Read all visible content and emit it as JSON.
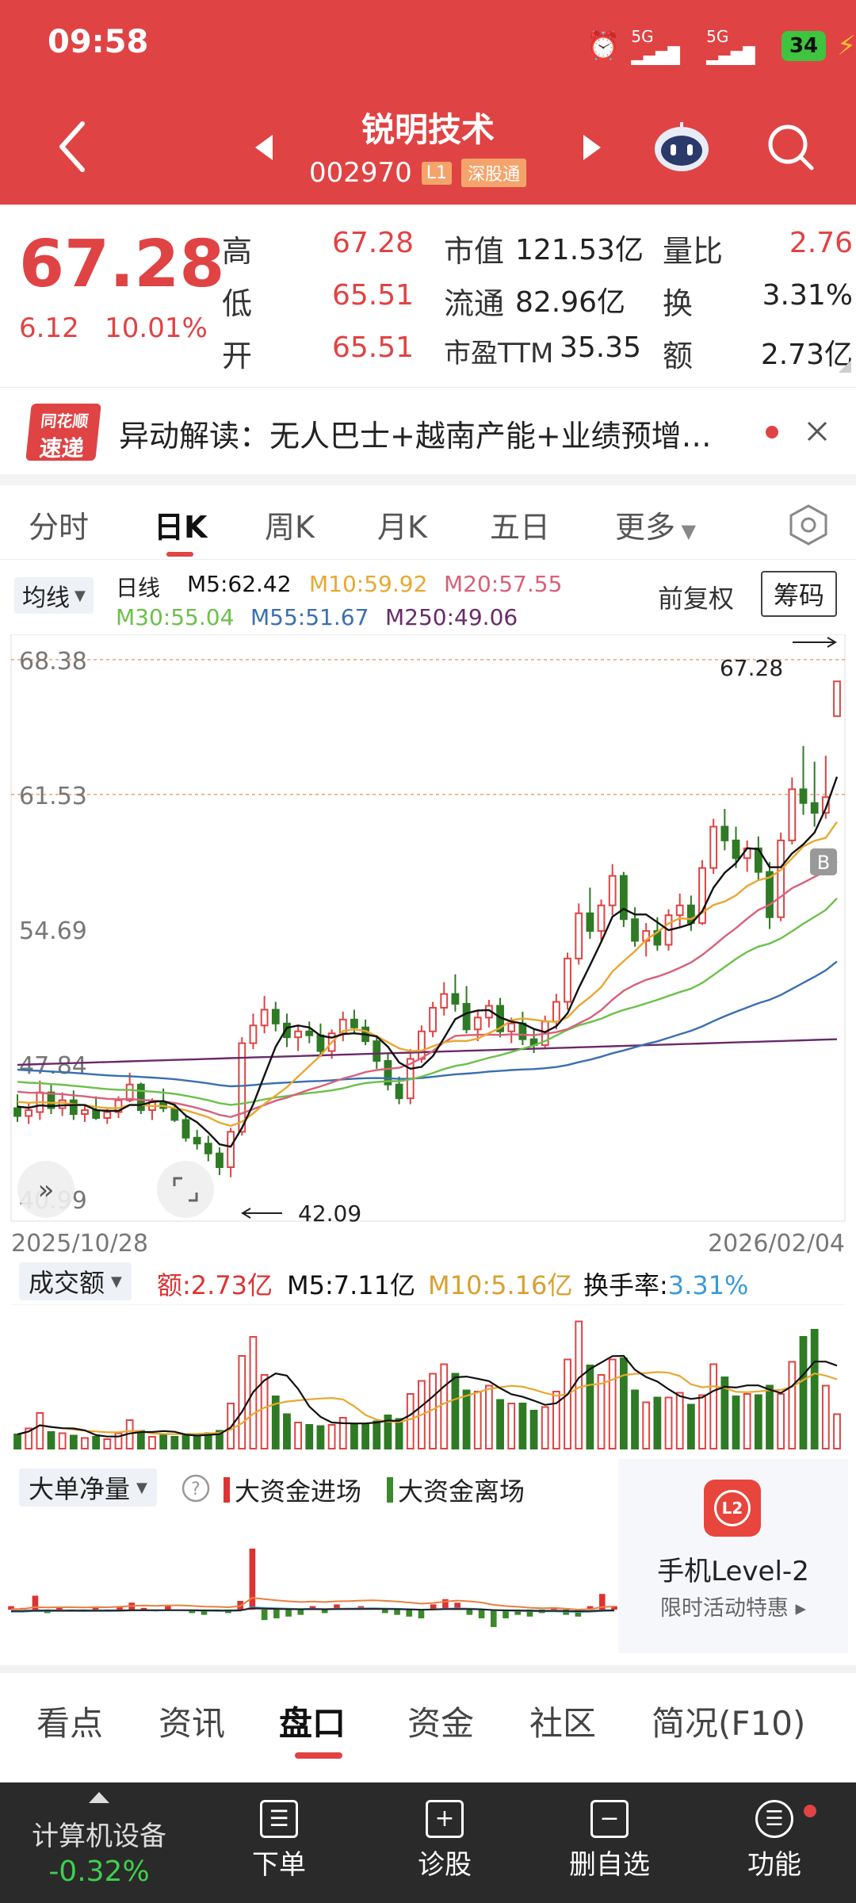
{
  "status": {
    "time": "09:58",
    "battery": "34",
    "net1": "5G",
    "net2": "5G"
  },
  "header": {
    "title": "锐明技术",
    "code": "002970",
    "badge1": "L1",
    "badge2": "深股通"
  },
  "quote": {
    "price": "67.28",
    "change": "6.12",
    "change_pct": "10.01%",
    "rows": [
      {
        "l1": "高",
        "v1": "67.28",
        "l2": "市值",
        "v2": "121.53亿",
        "l3": "量比",
        "v3": "2.76"
      },
      {
        "l1": "低",
        "v1": "65.51",
        "l2": "流通",
        "v2": "82.96亿",
        "l3": "换",
        "v3": "3.31%"
      },
      {
        "l1": "开",
        "v1": "65.51",
        "l2": "市盈TTM",
        "v2": "35.35",
        "l3": "额",
        "v3": "2.73亿"
      }
    ]
  },
  "anomaly": {
    "logo_top": "同花顺",
    "logo_bottom": "速递",
    "text": "异动解读：无人巴士+越南产能+业绩预增…"
  },
  "ktabs": [
    "分时",
    "日K",
    "周K",
    "月K",
    "五日",
    "更多"
  ],
  "ma_legend": {
    "mode": "均线",
    "line": "日线",
    "m5": "M5:62.42",
    "m10": "M10:59.92",
    "m20": "M20:57.55",
    "m30": "M30:55.04",
    "m55": "M55:51.67",
    "m250": "M250:49.06",
    "adjust": "前复权",
    "chips": "筹码"
  },
  "kchart": {
    "y_labels": [
      "68.38",
      "61.53",
      "54.69",
      "47.84",
      "40.99"
    ],
    "high_label": "67.28",
    "low_label": "42.09",
    "date_start": "2025/10/28",
    "date_end": "2026/02/04",
    "marker": "B"
  },
  "volume": {
    "selector": "成交额",
    "amount": "额:2.73亿",
    "m5": "M5:7.11亿",
    "m10": "M10:5.16亿",
    "turnover_label": "换手率:",
    "turnover": "3.31%"
  },
  "bigorder": {
    "selector": "大单净量",
    "in_label": "大资金进场",
    "out_label": "大资金离场"
  },
  "promo": {
    "title": "手机Level-2",
    "sub": "限时活动特惠"
  },
  "bottom_tabs": [
    "看点",
    "资讯",
    "盘口",
    "资金",
    "社区",
    "简况(F10)"
  ],
  "bottom_bar": {
    "sector": "计算机设备",
    "sector_chg": "-0.32%",
    "b1": "下单",
    "b2": "诊股",
    "b3": "删自选",
    "b4": "功能"
  },
  "colors": {
    "up": "#e04344",
    "down": "#2f7a25",
    "header": "#e04344"
  }
}
